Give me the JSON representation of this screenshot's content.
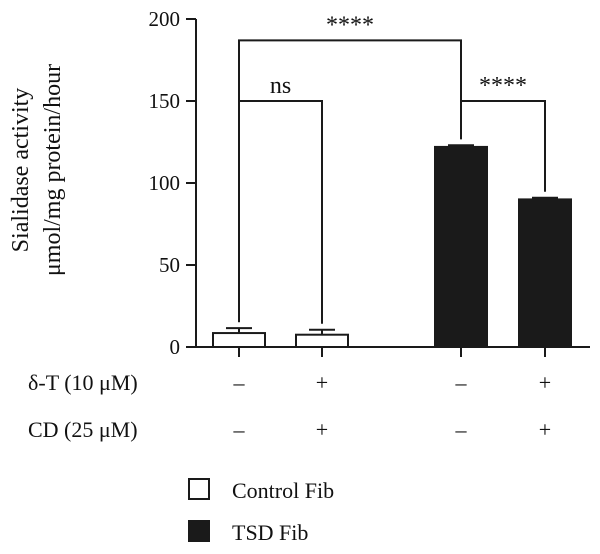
{
  "chart_data": {
    "type": "bar",
    "ylabel_line1": "Sialidase activity",
    "ylabel_line2": "μmol/mg protein/hour",
    "ylim": [
      0,
      200
    ],
    "yticks": [
      0,
      50,
      100,
      150,
      200
    ],
    "bars": [
      {
        "group": "Control Fib",
        "value": 8.5,
        "error": 3
      },
      {
        "group": "Control Fib",
        "value": 7.5,
        "error": 3
      },
      {
        "group": "TSD Fib",
        "value": 122,
        "error": 1
      },
      {
        "group": "TSD Fib",
        "value": 90,
        "error": 1
      }
    ],
    "treatment_rows": [
      {
        "label": "δ-T (10 μM)",
        "values": [
          "–",
          "+",
          "–",
          "+"
        ]
      },
      {
        "label": "CD (25 μM)",
        "values": [
          "–",
          "+",
          "–",
          "+"
        ]
      }
    ],
    "significance": [
      {
        "from": 1,
        "to": 2,
        "label": "ns"
      },
      {
        "from": 1,
        "to": 3,
        "label": "****"
      },
      {
        "from": 3,
        "to": 4,
        "label": "****"
      }
    ],
    "legend": [
      {
        "name": "Control Fib",
        "fill": "#ffffff"
      },
      {
        "name": "TSD Fib",
        "fill": "#1a1a1a"
      }
    ],
    "grid": false,
    "legend_position": "bottom"
  },
  "colors": {
    "control": "#ffffff",
    "tsd": "#1a1a1a",
    "stroke": "#1a1a1a"
  }
}
